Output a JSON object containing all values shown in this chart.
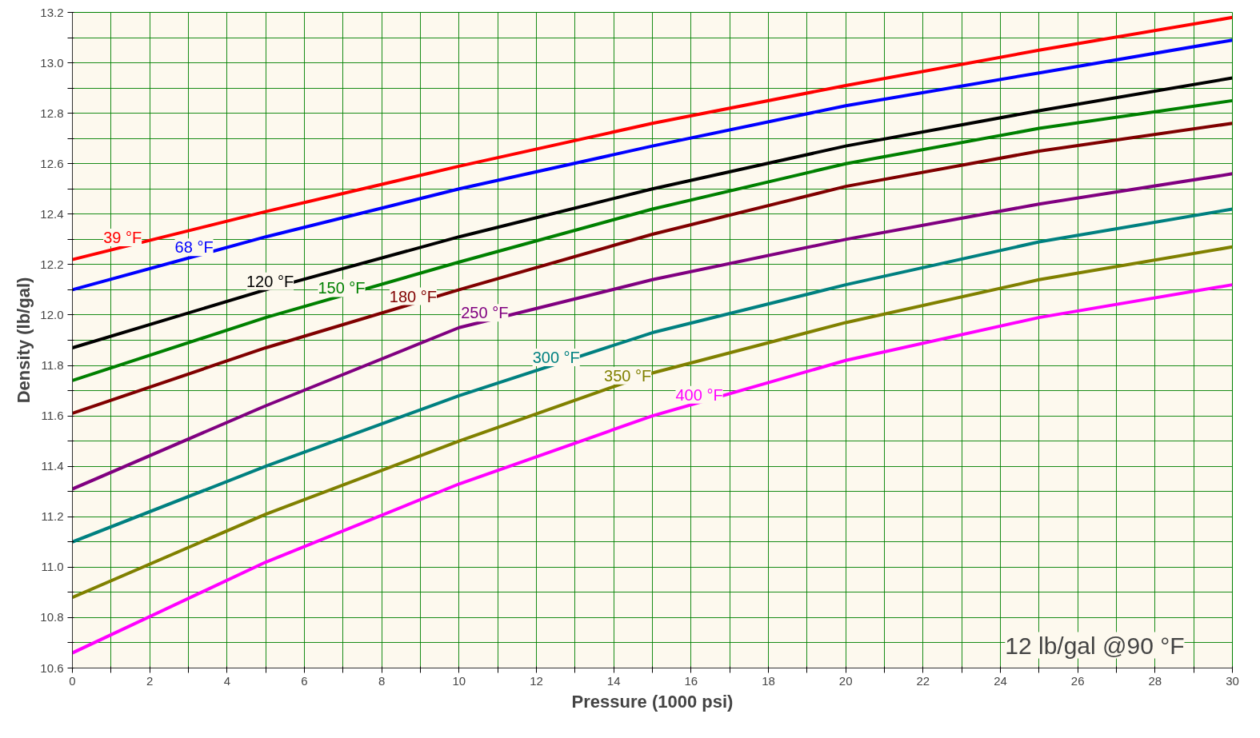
{
  "chart_data": {
    "type": "line",
    "xlabel": "Pressure (1000 psi)",
    "ylabel": "Density (lb/gal)",
    "x": [
      0,
      5,
      10,
      15,
      20,
      25,
      30
    ],
    "series": [
      {
        "name": "39 °F",
        "color": "#ff0000",
        "values": [
          12.22,
          12.41,
          12.59,
          12.76,
          12.91,
          13.05,
          13.18
        ]
      },
      {
        "name": "68 °F",
        "color": "#0000ff",
        "values": [
          12.1,
          12.31,
          12.5,
          12.67,
          12.83,
          12.96,
          13.09
        ]
      },
      {
        "name": "120 °F",
        "color": "#000000",
        "values": [
          11.87,
          12.1,
          12.31,
          12.5,
          12.67,
          12.81,
          12.94
        ]
      },
      {
        "name": "150 °F",
        "color": "#008000",
        "values": [
          11.74,
          11.99,
          12.21,
          12.42,
          12.6,
          12.74,
          12.85
        ]
      },
      {
        "name": "180 °F",
        "color": "#800000",
        "values": [
          11.61,
          11.87,
          12.1,
          12.32,
          12.51,
          12.65,
          12.76
        ]
      },
      {
        "name": "250 °F",
        "color": "#800080",
        "values": [
          11.31,
          11.64,
          11.95,
          12.14,
          12.3,
          12.44,
          12.56
        ]
      },
      {
        "name": "300 °F",
        "color": "#008080",
        "values": [
          11.1,
          11.4,
          11.68,
          11.93,
          12.12,
          12.29,
          12.42
        ]
      },
      {
        "name": "350 °F",
        "color": "#808000",
        "values": [
          10.88,
          11.21,
          11.5,
          11.77,
          11.97,
          12.14,
          12.27
        ]
      },
      {
        "name": "400 °F",
        "color": "#ff00ff",
        "values": [
          10.66,
          11.02,
          11.33,
          11.6,
          11.82,
          11.99,
          12.12
        ]
      }
    ],
    "xlim": [
      0,
      30
    ],
    "xticks": [
      0,
      {
        "value": 1,
        "label": null
      },
      2,
      {
        "value": 3,
        "label": null
      },
      4,
      {
        "value": 5,
        "label": null
      },
      6,
      {
        "value": 7,
        "label": null
      },
      8,
      {
        "value": 9,
        "label": null
      },
      10,
      {
        "value": 11,
        "label": null
      },
      12,
      {
        "value": 13,
        "label": null
      },
      14,
      {
        "value": 15,
        "label": null
      },
      16,
      {
        "value": 17,
        "label": null
      },
      18,
      {
        "value": 19,
        "label": null
      },
      20,
      {
        "value": 21,
        "label": null
      },
      22,
      {
        "value": 23,
        "label": null
      },
      24,
      {
        "value": 25,
        "label": null
      },
      26,
      {
        "value": 27,
        "label": null
      },
      28,
      {
        "value": 29,
        "label": null
      },
      30
    ],
    "ylim": [
      10.6,
      13.2
    ],
    "yticks": [
      {
        "value": 10.6,
        "label": "10.6"
      },
      {
        "value": 10.7,
        "label": null
      },
      {
        "value": 10.8,
        "label": "10.8"
      },
      {
        "value": 10.9,
        "label": null
      },
      {
        "value": 11.0,
        "label": "11.0"
      },
      {
        "value": 11.1,
        "label": null
      },
      {
        "value": 11.2,
        "label": "11.2"
      },
      {
        "value": 11.3,
        "label": null
      },
      {
        "value": 11.4,
        "label": "11.4"
      },
      {
        "value": 11.5,
        "label": null
      },
      {
        "value": 11.6,
        "label": "11.6"
      },
      {
        "value": 11.7,
        "label": null
      },
      {
        "value": 11.8,
        "label": "11.8"
      },
      {
        "value": 11.9,
        "label": null
      },
      {
        "value": 12.0,
        "label": "12.0"
      },
      {
        "value": 12.1,
        "label": null
      },
      {
        "value": 12.2,
        "label": "12.2"
      },
      {
        "value": 12.3,
        "label": null
      },
      {
        "value": 12.4,
        "label": "12.4"
      },
      {
        "value": 12.5,
        "label": null
      },
      {
        "value": 12.6,
        "label": "12.6"
      },
      {
        "value": 12.7,
        "label": null
      },
      {
        "value": 12.8,
        "label": "12.8"
      },
      {
        "value": 12.9,
        "label": null
      },
      {
        "value": 13.0,
        "label": "13.0"
      },
      {
        "value": 13.1,
        "label": null
      },
      {
        "value": 13.2,
        "label": "13.2"
      }
    ],
    "grid": true,
    "marker": "none",
    "line_style": "solid",
    "annotations": [
      "12 lb/gal @90 °F"
    ]
  }
}
